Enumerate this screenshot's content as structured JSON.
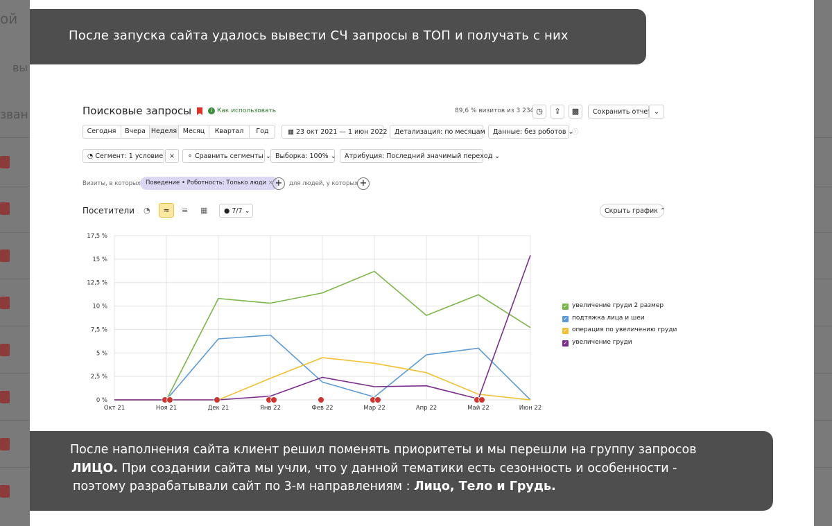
{
  "slide": {
    "top_banner": "После запуска сайта удалось вывести СЧ запросы в ТОП и получать с них",
    "bottom_banner": {
      "line1": "После наполнения сайта клиент решил поменять приоритеты и мы перешли на группу запросов",
      "line2_bold": "ЛИЦО.",
      "line2_rest": " При создании сайта мы учли, что у данной тематики есть сезонность и особенности -",
      "line3_rest": "поэтому разрабатывали сайт по 3-м направлениям : ",
      "line3_bold": "Лицо, Тело и Грудь."
    }
  },
  "report": {
    "title": "Поисковые запросы",
    "how_to": "Как использовать",
    "visits_info": "89,6 % визитов из 3 234",
    "save_report": "Сохранить отчет",
    "periods": [
      "Сегодня",
      "Вчера",
      "Неделя",
      "Месяц",
      "Квартал",
      "Год"
    ],
    "date_range": "23 окт 2021 — 1 июн 2022",
    "detail": "Детализация: по месяцам",
    "data_filter": "Данные: без роботов",
    "segment": "Сегмент: 1 условие",
    "compare": "Сравнить сегменты",
    "sample": "Выборка: 100%",
    "attribution": "Атрибуция: Последний значимый переход",
    "visits_where": "Визиты, в которых",
    "chip": "Поведение • Роботность: Только люди",
    "for_people": "для людей, у которых",
    "visitors_label": "Посетители",
    "series_count": "7/7",
    "hide_chart": "Скрыть график"
  },
  "chart_data": {
    "type": "line",
    "x": [
      "Окт 21",
      "Ноя 21",
      "Дек 21",
      "Янв 22",
      "Фев 22",
      "Мар 22",
      "Апр 22",
      "Май 22",
      "Июн 22"
    ],
    "y_ticks": [
      "0 %",
      "2,5 %",
      "5 %",
      "7,5 %",
      "10 %",
      "12,5 %",
      "15 %",
      "17,5 %"
    ],
    "ylim": [
      0,
      17.5
    ],
    "grid": true,
    "legend": "right",
    "series": [
      {
        "name": "увеличение груди 2 размер",
        "color": "#7ab648",
        "values": [
          0,
          0,
          10.8,
          10.3,
          11.4,
          13.7,
          9.0,
          11.2,
          7.7
        ]
      },
      {
        "name": "подтяжка лица и шеи",
        "color": "#5b9bd5",
        "values": [
          0,
          0,
          6.5,
          6.9,
          1.9,
          0.3,
          4.8,
          5.5,
          0
        ]
      },
      {
        "name": "операция по увеличению груди",
        "color": "#f2c12e",
        "values": [
          0,
          0,
          0,
          2.3,
          4.5,
          3.9,
          2.9,
          0.6,
          0
        ]
      },
      {
        "name": "увеличение груди",
        "color": "#7b2d8e",
        "values": [
          0,
          0,
          0,
          0.4,
          2.4,
          1.4,
          1.5,
          0.1,
          15.4
        ]
      }
    ]
  }
}
